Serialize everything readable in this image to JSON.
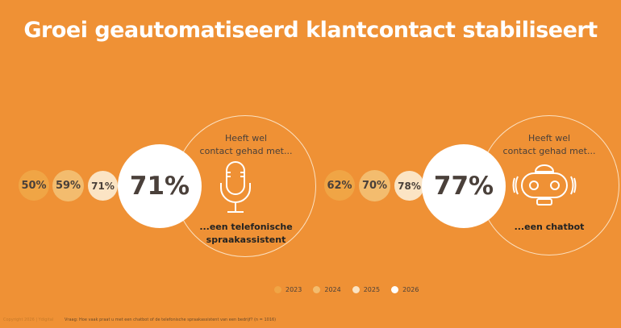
{
  "title": "Groei geautomatiseerd klantcontact stabiliseert",
  "chart_data": {
    "type": "bubble",
    "title": "Groei geautomatiseerd klantcontact stabiliseert",
    "categories": [
      "2023",
      "2024",
      "2025",
      "2026"
    ],
    "colors": [
      "#F0A545",
      "#F3BC6E",
      "#FBE4C4",
      "#FFFFFF"
    ],
    "groups": [
      {
        "heading": "Heeft wel contact gehad met...",
        "label": "...een telefonische spraakassistent",
        "icon": "microphone-icon",
        "values": [
          50,
          59,
          71,
          71
        ],
        "value_labels": [
          "50%",
          "59%",
          "71%",
          "71%"
        ]
      },
      {
        "heading": "Heeft wel contact gehad met...",
        "label": "...een chatbot",
        "icon": "robot-icon",
        "values": [
          62,
          70,
          78,
          77
        ],
        "value_labels": [
          "62%",
          "70%",
          "78%",
          "77%"
        ]
      }
    ],
    "legend_position": "bottom-center"
  },
  "heading_line1": "Heeft wel",
  "heading_line2": "contact gehad met...",
  "footer": {
    "copyright": "Copyright 2026 | Ydigital",
    "question": "Vraag: Hoe vaak praat u met een chatbot of de telefonische spraakassistent van een bedrijf? (n = 1016)"
  }
}
